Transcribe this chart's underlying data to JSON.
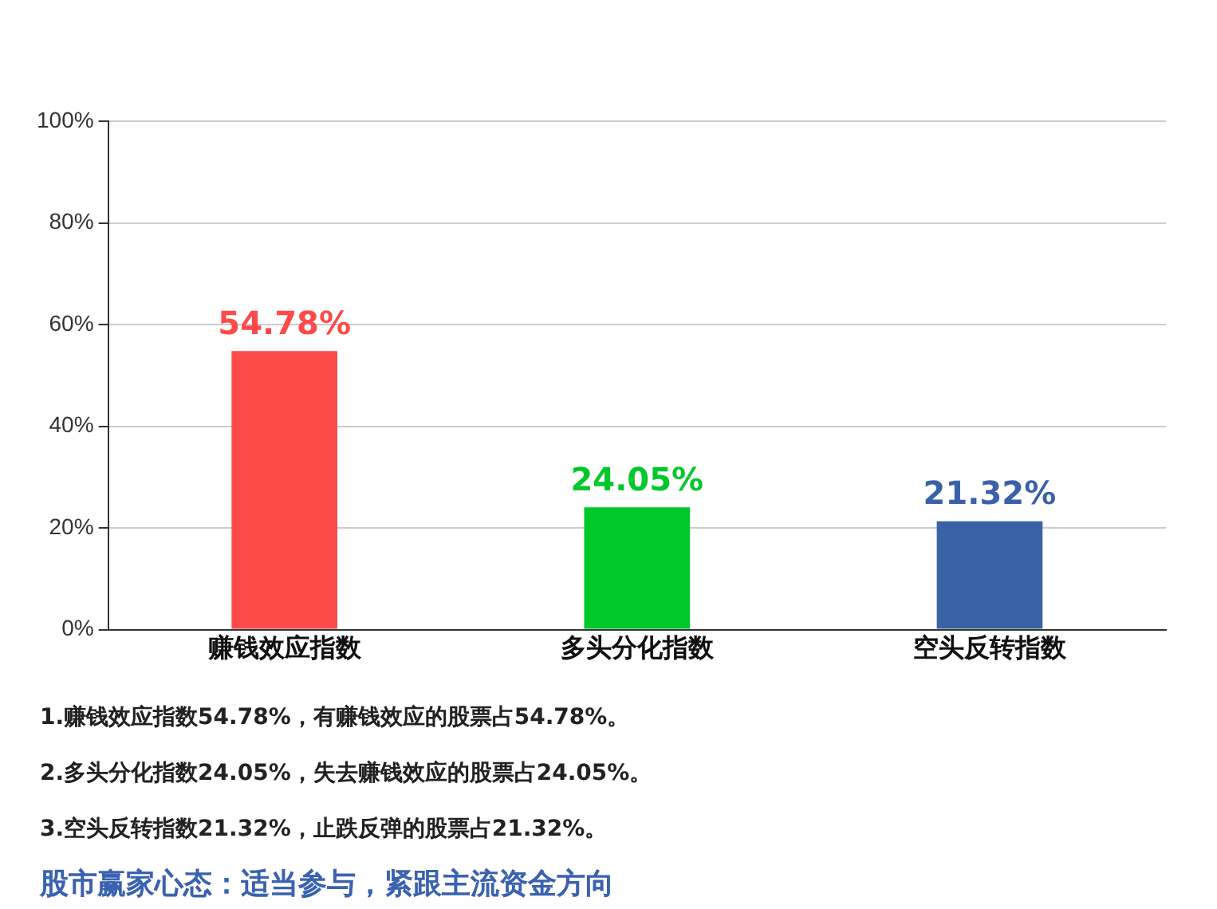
{
  "chart_data": {
    "type": "bar",
    "categories": [
      "赚钱效应指数",
      "多头分化指数",
      "空头反转指数"
    ],
    "values": [
      54.78,
      24.05,
      21.32
    ],
    "colors": [
      "#ff4a4a",
      "#00c82a",
      "#3a62a6"
    ],
    "ylim": [
      0,
      100
    ],
    "yticks": [
      {
        "value": 0,
        "label": "0%"
      },
      {
        "value": 20,
        "label": "20%"
      },
      {
        "value": 40,
        "label": "40%"
      },
      {
        "value": 60,
        "label": "60%"
      },
      {
        "value": 80,
        "label": "80%"
      },
      {
        "value": 100,
        "label": "100%"
      }
    ],
    "grid": "y",
    "legend": false,
    "data_labels": true,
    "value_labels": [
      "54.78%",
      "24.05%",
      "21.32%"
    ],
    "annotations": [
      "1.赚钱效应指数54.78%，有赚钱效应的股票占54.78%。",
      "2.多头分化指数24.05%，失去赚钱效应的股票占24.05%。",
      "3.空头反转指数21.32%，止跌反弹的股票占21.32%。",
      "股市赢家心态：适当参与，紧跟主流资金方向"
    ]
  }
}
